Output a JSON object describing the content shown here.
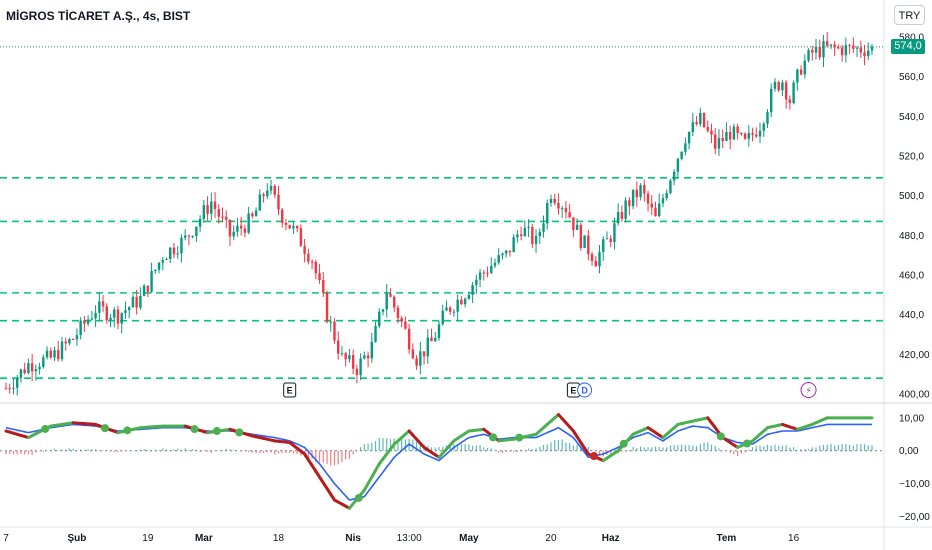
{
  "header": {
    "title": "MİGROS TİCARET A.Ş., 4s, BIST",
    "currency_button": "TRY",
    "last_price_label": "574,0"
  },
  "colors": {
    "up": "#089981",
    "down": "#f23645",
    "level_line": "#00c878",
    "macd": "#2962ff",
    "signal_up": "#4caf50",
    "signal_down": "#b71c1c",
    "dot_up": "#4caf50",
    "dot_down": "#c62828"
  },
  "chart_data": [
    {
      "type": "candlestick",
      "title": "",
      "y_ticks": [
        "580,0",
        "560,0",
        "540,0",
        "520,0",
        "500,0",
        "480,0",
        "460,0",
        "440,0",
        "420,00",
        "400,00"
      ],
      "y_tick_values": [
        580,
        560,
        540,
        520,
        500,
        480,
        460,
        440,
        420,
        400
      ],
      "ylim": [
        397,
        582
      ],
      "last_price": 574,
      "x_ticks": [
        {
          "label": "7",
          "x": 0,
          "bold": false
        },
        {
          "label": "Şub",
          "x": 19,
          "bold": true
        },
        {
          "label": "19",
          "x": 38,
          "bold": false
        },
        {
          "label": "Mar",
          "x": 53,
          "bold": true
        },
        {
          "label": "18",
          "x": 73,
          "bold": false
        },
        {
          "label": "Nis",
          "x": 93,
          "bold": true
        },
        {
          "label": "13:00",
          "x": 108,
          "bold": false
        },
        {
          "label": "May",
          "x": 124,
          "bold": true
        },
        {
          "label": "20",
          "x": 146,
          "bold": false
        },
        {
          "label": "Haz",
          "x": 162,
          "bold": true
        },
        {
          "label": "Tem",
          "x": 193,
          "bold": true
        },
        {
          "label": "16",
          "x": 211,
          "bold": false
        }
      ],
      "xlim": [
        0,
        232
      ],
      "horizontal_levels": [
        509,
        487,
        451,
        437,
        408
      ],
      "events": [
        {
          "label": "E",
          "x": 76,
          "type": "earnings"
        },
        {
          "label": "E",
          "x": 152,
          "type": "earnings"
        },
        {
          "label": "D",
          "x": 155,
          "type": "dividend"
        },
        {
          "label": "⚡",
          "x": 215,
          "type": "split"
        }
      ],
      "close_anchors": [
        [
          0,
          403
        ],
        [
          6,
          415
        ],
        [
          12,
          418
        ],
        [
          18,
          428
        ],
        [
          24,
          443
        ],
        [
          30,
          440
        ],
        [
          36,
          448
        ],
        [
          42,
          470
        ],
        [
          48,
          478
        ],
        [
          55,
          497
        ],
        [
          60,
          480
        ],
        [
          66,
          488
        ],
        [
          70,
          505
        ],
        [
          74,
          490
        ],
        [
          78,
          480
        ],
        [
          82,
          468
        ],
        [
          86,
          440
        ],
        [
          90,
          418
        ],
        [
          94,
          413
        ],
        [
          98,
          424
        ],
        [
          102,
          452
        ],
        [
          106,
          436
        ],
        [
          110,
          418
        ],
        [
          114,
          426
        ],
        [
          118,
          442
        ],
        [
          122,
          449
        ],
        [
          126,
          458
        ],
        [
          130,
          465
        ],
        [
          134,
          470
        ],
        [
          138,
          484
        ],
        [
          142,
          476
        ],
        [
          146,
          502
        ],
        [
          150,
          494
        ],
        [
          154,
          478
        ],
        [
          158,
          468
        ],
        [
          162,
          480
        ],
        [
          166,
          495
        ],
        [
          170,
          503
        ],
        [
          174,
          488
        ],
        [
          178,
          510
        ],
        [
          182,
          530
        ],
        [
          186,
          538
        ],
        [
          190,
          525
        ],
        [
          194,
          532
        ],
        [
          198,
          526
        ],
        [
          202,
          536
        ],
        [
          206,
          555
        ],
        [
          208,
          558
        ],
        [
          210,
          548
        ],
        [
          213,
          565
        ],
        [
          216,
          572
        ],
        [
          219,
          574
        ]
      ]
    },
    {
      "type": "line",
      "title": "",
      "y_ticks": [
        "10,00",
        "0,00",
        "−10,00",
        "−20,00"
      ],
      "y_tick_values": [
        10,
        0,
        -10,
        -20
      ],
      "ylim": [
        -22,
        13
      ],
      "macd_anchors": [
        [
          0,
          7
        ],
        [
          6,
          5.5
        ],
        [
          12,
          7
        ],
        [
          18,
          8
        ],
        [
          24,
          7.5
        ],
        [
          30,
          6
        ],
        [
          36,
          6.5
        ],
        [
          42,
          7
        ],
        [
          48,
          7
        ],
        [
          54,
          6
        ],
        [
          60,
          6
        ],
        [
          66,
          5
        ],
        [
          72,
          4
        ],
        [
          76,
          3
        ],
        [
          80,
          1
        ],
        [
          84,
          -4
        ],
        [
          88,
          -10
        ],
        [
          92,
          -15
        ],
        [
          96,
          -14
        ],
        [
          100,
          -8
        ],
        [
          104,
          -2
        ],
        [
          108,
          2
        ],
        [
          112,
          -1
        ],
        [
          116,
          -3
        ],
        [
          120,
          1
        ],
        [
          124,
          4
        ],
        [
          128,
          5
        ],
        [
          132,
          3.5
        ],
        [
          136,
          4
        ],
        [
          142,
          4
        ],
        [
          148,
          7
        ],
        [
          152,
          4
        ],
        [
          156,
          -2
        ],
        [
          160,
          -1
        ],
        [
          164,
          1
        ],
        [
          168,
          4
        ],
        [
          172,
          5.5
        ],
        [
          176,
          3
        ],
        [
          180,
          6
        ],
        [
          184,
          7.5
        ],
        [
          188,
          7
        ],
        [
          192,
          4
        ],
        [
          196,
          2.5
        ],
        [
          200,
          2
        ],
        [
          204,
          5
        ],
        [
          208,
          6
        ],
        [
          212,
          6
        ],
        [
          216,
          7
        ],
        [
          220,
          8
        ]
      ],
      "signal_anchors": [
        [
          0,
          6
        ],
        [
          6,
          4
        ],
        [
          12,
          7.5
        ],
        [
          18,
          8.5
        ],
        [
          24,
          8
        ],
        [
          30,
          5.5
        ],
        [
          36,
          7
        ],
        [
          42,
          7.5
        ],
        [
          48,
          7.5
        ],
        [
          54,
          5.5
        ],
        [
          60,
          6.5
        ],
        [
          66,
          4.5
        ],
        [
          72,
          3
        ],
        [
          76,
          2.5
        ],
        [
          80,
          -1
        ],
        [
          84,
          -8
        ],
        [
          88,
          -15
        ],
        [
          92,
          -17.5
        ],
        [
          96,
          -12
        ],
        [
          100,
          -4
        ],
        [
          104,
          2
        ],
        [
          108,
          6
        ],
        [
          112,
          1
        ],
        [
          116,
          -2
        ],
        [
          120,
          3
        ],
        [
          124,
          6
        ],
        [
          128,
          6.5
        ],
        [
          132,
          3
        ],
        [
          136,
          3.5
        ],
        [
          142,
          5
        ],
        [
          148,
          11
        ],
        [
          152,
          6
        ],
        [
          156,
          -1
        ],
        [
          160,
          -3
        ],
        [
          164,
          0
        ],
        [
          168,
          5
        ],
        [
          172,
          7
        ],
        [
          176,
          4
        ],
        [
          180,
          8
        ],
        [
          184,
          9
        ],
        [
          188,
          10
        ],
        [
          192,
          4
        ],
        [
          196,
          1
        ],
        [
          200,
          3
        ],
        [
          204,
          7
        ],
        [
          208,
          8
        ],
        [
          212,
          6.5
        ],
        [
          216,
          8
        ],
        [
          220,
          10
        ]
      ],
      "histogram_note": "difference of signal and macd"
    }
  ]
}
